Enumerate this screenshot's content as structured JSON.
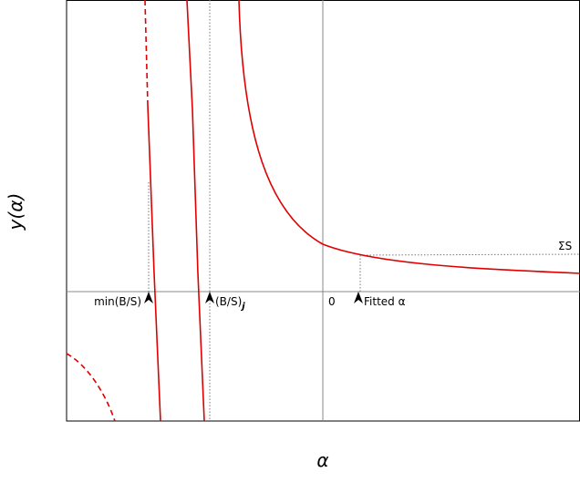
{
  "axes": {
    "y_label": "y(α)",
    "x_label": "α"
  },
  "annotations": {
    "min_bs": "min(B/S)",
    "bs_j": "(B/S)",
    "bs_j_sub": "j",
    "zero": "0",
    "fitted": "Fitted α",
    "sum_s": "ΣS"
  }
}
